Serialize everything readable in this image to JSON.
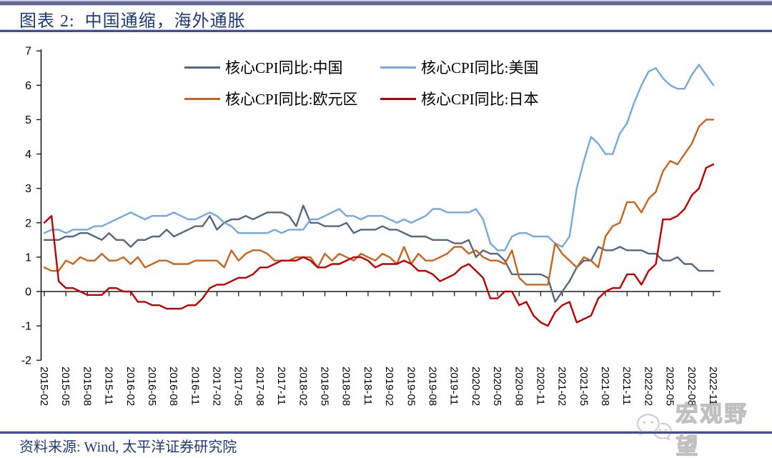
{
  "header": {
    "title": "图表 2:  中国通缩，海外通胀"
  },
  "footer": {
    "source": "资料来源: Wind, 太平洋证券研究院"
  },
  "watermark": {
    "text": "宏观野望",
    "icon": "wechat-icon"
  },
  "colors": {
    "accent_navy": "#1f3b75",
    "rule_dark": "#434c9e",
    "rule_light": "#c4c6dc",
    "axis": "#1a1a1a"
  },
  "chart_data": {
    "type": "line",
    "title": "",
    "xlabel": "",
    "ylabel": "",
    "x_start": "2015-02",
    "x_end": "2022-11",
    "x_frequency": "monthly",
    "x_tick_labels": [
      "2015-02",
      "2015-05",
      "2015-08",
      "2015-11",
      "2016-02",
      "2016-05",
      "2016-08",
      "2016-11",
      "2017-02",
      "2017-05",
      "2017-08",
      "2017-11",
      "2018-02",
      "2018-05",
      "2018-08",
      "2018-11",
      "2019-02",
      "2019-05",
      "2019-08",
      "2019-11",
      "2020-02",
      "2020-05",
      "2020-08",
      "2020-11",
      "2021-02",
      "2021-05",
      "2021-08",
      "2021-11",
      "2022-02",
      "2022-05",
      "2022-08",
      "2022-11"
    ],
    "ylim": [
      -2,
      7
    ],
    "y_ticks": [
      7,
      6,
      5,
      4,
      3,
      2,
      1,
      0,
      -1,
      -2
    ],
    "grid": false,
    "legend_position": "top-inside-two-columns",
    "series": [
      {
        "key": "china",
        "name": "核心CPI同比:中国",
        "color": "#54687e",
        "values": [
          1.5,
          1.5,
          1.5,
          1.6,
          1.6,
          1.7,
          1.7,
          1.6,
          1.5,
          1.7,
          1.5,
          1.5,
          1.3,
          1.5,
          1.5,
          1.6,
          1.6,
          1.8,
          1.6,
          1.7,
          1.8,
          1.9,
          1.9,
          2.2,
          1.8,
          2.0,
          2.1,
          2.1,
          2.2,
          2.1,
          2.2,
          2.3,
          2.3,
          2.3,
          2.2,
          1.9,
          2.5,
          2.0,
          2.0,
          1.9,
          1.9,
          1.9,
          2.0,
          1.7,
          1.8,
          1.8,
          1.8,
          1.9,
          1.8,
          1.8,
          1.7,
          1.6,
          1.6,
          1.6,
          1.5,
          1.5,
          1.5,
          1.4,
          1.4,
          1.5,
          1.0,
          1.2,
          1.1,
          1.1,
          0.9,
          0.5,
          0.5,
          0.5,
          0.5,
          0.5,
          0.4,
          -0.3,
          0.0,
          0.3,
          0.7,
          0.9,
          0.9,
          1.3,
          1.2,
          1.2,
          1.3,
          1.2,
          1.2,
          1.2,
          1.1,
          1.1,
          0.9,
          0.9,
          1.0,
          0.8,
          0.8,
          0.6,
          0.6,
          0.6
        ]
      },
      {
        "key": "usa",
        "name": "核心CPI同比:美国",
        "color": "#74a9df",
        "values": [
          1.7,
          1.8,
          1.8,
          1.7,
          1.8,
          1.8,
          1.8,
          1.9,
          1.9,
          2.0,
          2.1,
          2.2,
          2.3,
          2.2,
          2.1,
          2.2,
          2.2,
          2.2,
          2.3,
          2.2,
          2.1,
          2.1,
          2.2,
          2.3,
          2.2,
          2.0,
          1.9,
          1.7,
          1.7,
          1.7,
          1.7,
          1.7,
          1.8,
          1.7,
          1.8,
          1.8,
          1.8,
          2.1,
          2.1,
          2.2,
          2.3,
          2.4,
          2.2,
          2.2,
          2.1,
          2.2,
          2.2,
          2.2,
          2.1,
          2.0,
          2.1,
          2.0,
          2.1,
          2.2,
          2.4,
          2.4,
          2.3,
          2.3,
          2.3,
          2.3,
          2.4,
          2.1,
          1.4,
          1.2,
          1.2,
          1.6,
          1.7,
          1.7,
          1.6,
          1.6,
          1.6,
          1.4,
          1.3,
          1.6,
          3.0,
          3.8,
          4.5,
          4.3,
          4.0,
          4.0,
          4.6,
          4.9,
          5.5,
          6.0,
          6.4,
          6.5,
          6.2,
          6.0,
          5.9,
          5.9,
          6.3,
          6.6,
          6.3,
          6.0
        ]
      },
      {
        "key": "eurozone",
        "name": "核心CPI同比:欧元区",
        "color": "#c8641c",
        "values": [
          0.7,
          0.6,
          0.6,
          0.9,
          0.8,
          1.0,
          0.9,
          0.9,
          1.1,
          0.9,
          0.9,
          1.0,
          0.8,
          1.0,
          0.7,
          0.8,
          0.9,
          0.9,
          0.8,
          0.8,
          0.8,
          0.9,
          0.9,
          0.9,
          0.9,
          0.7,
          1.2,
          0.9,
          1.1,
          1.2,
          1.2,
          1.1,
          0.9,
          0.9,
          0.9,
          1.0,
          1.0,
          1.0,
          0.7,
          1.1,
          0.9,
          1.1,
          1.0,
          0.9,
          1.1,
          1.0,
          0.9,
          1.1,
          1.0,
          0.8,
          1.3,
          0.8,
          1.1,
          0.9,
          0.9,
          1.0,
          1.1,
          1.3,
          1.3,
          1.1,
          1.2,
          1.0,
          0.9,
          0.9,
          0.8,
          1.2,
          0.4,
          0.2,
          0.2,
          0.2,
          0.2,
          1.4,
          1.1,
          0.9,
          0.7,
          1.0,
          0.9,
          0.7,
          1.6,
          1.9,
          2.0,
          2.6,
          2.6,
          2.3,
          2.7,
          2.9,
          3.5,
          3.8,
          3.7,
          4.0,
          4.3,
          4.8,
          5.0,
          5.0
        ]
      },
      {
        "key": "japan",
        "name": "核心CPI同比:日本",
        "color": "#c00000",
        "values": [
          2.0,
          2.2,
          0.3,
          0.1,
          0.1,
          0.0,
          -0.1,
          -0.1,
          -0.1,
          0.1,
          0.1,
          0.0,
          0.0,
          -0.3,
          -0.3,
          -0.4,
          -0.4,
          -0.5,
          -0.5,
          -0.5,
          -0.4,
          -0.4,
          -0.2,
          0.1,
          0.2,
          0.2,
          0.3,
          0.4,
          0.4,
          0.5,
          0.7,
          0.7,
          0.8,
          0.9,
          0.9,
          0.9,
          1.0,
          0.9,
          0.7,
          0.7,
          0.8,
          0.8,
          0.9,
          1.0,
          1.0,
          0.9,
          0.7,
          0.8,
          0.8,
          0.8,
          0.9,
          0.8,
          0.6,
          0.6,
          0.5,
          0.3,
          0.4,
          0.5,
          0.7,
          0.8,
          0.6,
          0.4,
          -0.2,
          -0.2,
          0.0,
          0.0,
          -0.4,
          -0.3,
          -0.7,
          -0.9,
          -1.0,
          -0.6,
          -0.4,
          -0.3,
          -0.9,
          -0.8,
          -0.7,
          -0.2,
          0.0,
          0.1,
          0.1,
          0.5,
          0.5,
          0.2,
          0.6,
          0.8,
          2.1,
          2.1,
          2.2,
          2.4,
          2.8,
          3.0,
          3.6,
          3.7
        ]
      }
    ]
  }
}
